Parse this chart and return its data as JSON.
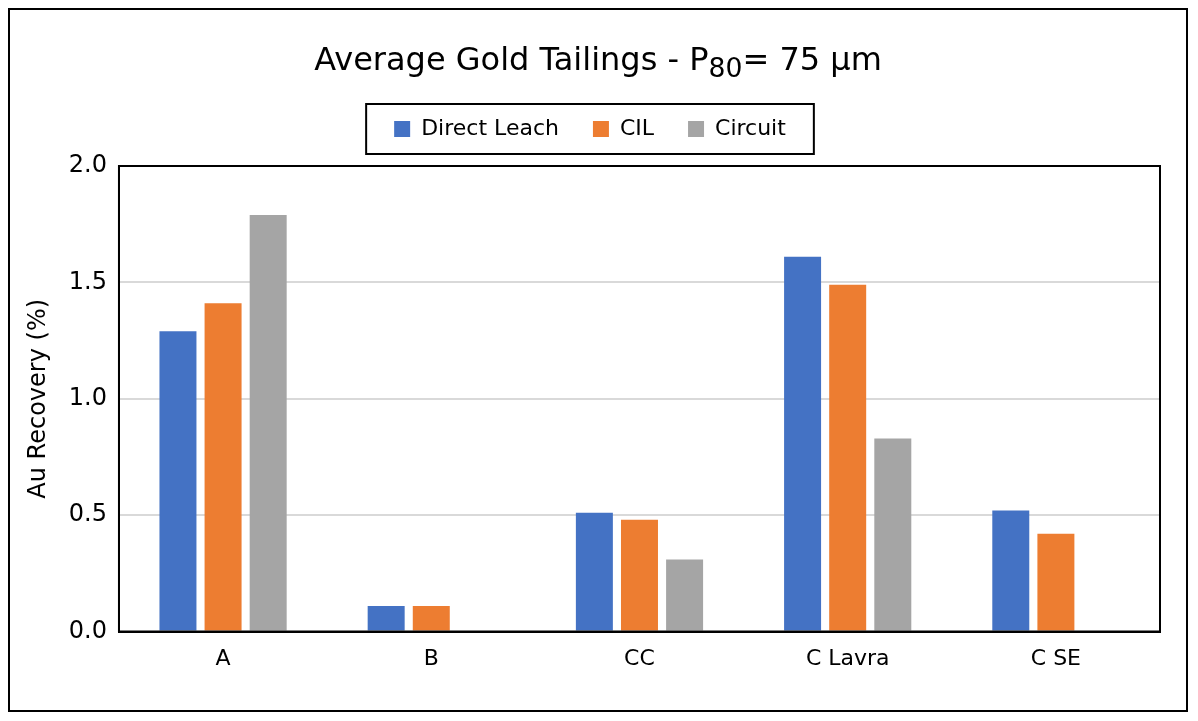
{
  "chart_data": {
    "type": "bar",
    "title": "Average Gold Tailings - P$_{80}$= 75 µm",
    "ylabel": "Au Recovery (%)",
    "categories": [
      "A",
      "B",
      "CC",
      "C Lavra",
      "C SE"
    ],
    "series": [
      {
        "name": "Direct Leach",
        "color": "#4472c4",
        "values": [
          1.29,
          0.11,
          0.51,
          1.61,
          0.52
        ]
      },
      {
        "name": "CIL",
        "color": "#ed7d31",
        "values": [
          1.41,
          0.11,
          0.48,
          1.49,
          0.42
        ]
      },
      {
        "name": "Circuit",
        "color": "#a5a5a5",
        "values": [
          1.79,
          null,
          0.31,
          0.83,
          null
        ]
      }
    ],
    "ylim": [
      0,
      2
    ],
    "yticks": [
      {
        "value": 0,
        "label": "0.0"
      },
      {
        "value": 0.5,
        "label": "0.5"
      },
      {
        "value": 1,
        "label": "1.0"
      },
      {
        "value": 1.5,
        "label": "1.5"
      },
      {
        "value": 2,
        "label": "2.0"
      }
    ],
    "grid": "y",
    "legend": "top"
  }
}
